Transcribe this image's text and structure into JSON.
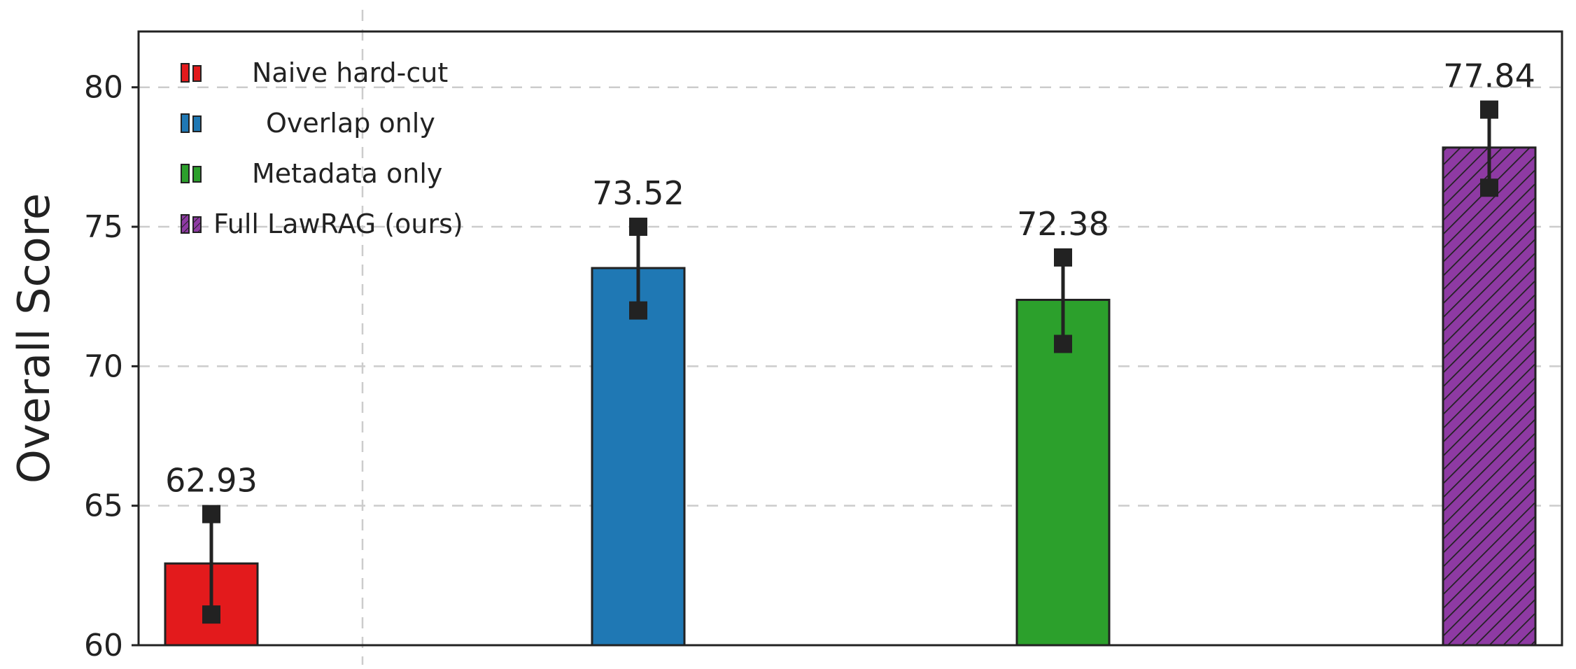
{
  "chart_data": {
    "type": "bar",
    "ylabel": "Overall Score",
    "ylim": [
      60,
      82
    ],
    "yticks": [
      60,
      65,
      70,
      75,
      80
    ],
    "grid": true,
    "legend_position": "top-left",
    "categories": [
      "Naive hard-cut",
      "Overlap only",
      "Metadata only",
      "Full LawRAG (ours)"
    ],
    "values": [
      62.93,
      73.52,
      72.38,
      77.84
    ],
    "value_labels": [
      "62.93",
      "73.52",
      "72.38",
      "77.84"
    ],
    "error_low": [
      61.1,
      72.0,
      70.8,
      76.4
    ],
    "error_high": [
      64.7,
      75.0,
      73.9,
      79.2
    ],
    "colors": [
      "#e31a1c",
      "#1f78b4",
      "#2ca02c",
      "#8e3aa3"
    ],
    "hatched": [
      false,
      false,
      false,
      true
    ]
  }
}
